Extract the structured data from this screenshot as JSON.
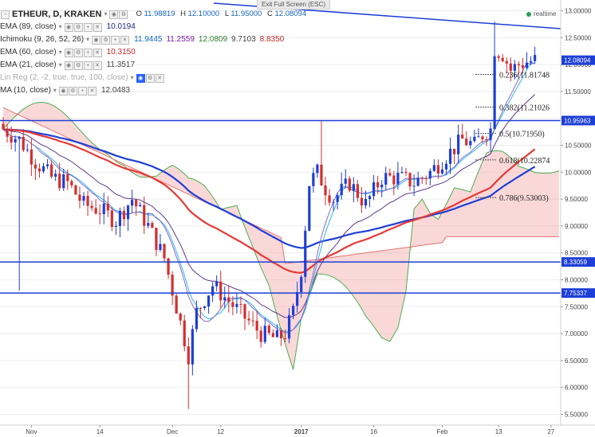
{
  "ui": {
    "exit_fullscreen": "Exit Full Screen (ESC)",
    "realtime": "realtime"
  },
  "header": {
    "symbol": "ETHEUR, D, KRAKEN",
    "o_key": "O",
    "o_val": "11.98819",
    "h_key": "H",
    "h_val": "12.10000",
    "l_key": "L",
    "l_val": "11.95000",
    "c_key": "C",
    "c_val": "12.08094"
  },
  "indicators": [
    {
      "name": "EMA (89, close)",
      "values": [
        "10.0194"
      ],
      "value_colors": [
        "#1a237e"
      ]
    },
    {
      "name": "Ichimoku (9, 26, 52, 26)",
      "values": [
        "11.9445",
        "11.2559",
        "12.0809",
        "9.7103",
        "8.8350"
      ],
      "value_colors": [
        "#1565c0",
        "#7b1fa2",
        "#2e7d32",
        "#444444",
        "#c62828"
      ]
    },
    {
      "name": "EMA (60, close)",
      "values": [
        "10.3150"
      ],
      "value_colors": [
        "#c62828"
      ]
    },
    {
      "name": "EMA (21, close)",
      "values": [
        "11.3517"
      ],
      "value_colors": [
        "#444444"
      ]
    },
    {
      "name": "Lin Reg (2, -2, true, true, 100, close)",
      "values": [],
      "value_colors": []
    },
    {
      "name": "MA (10, close)",
      "values": [
        "12.0483"
      ],
      "value_colors": [
        "#444444"
      ]
    }
  ],
  "chart_data": {
    "type": "candlestick",
    "y_range": [
      5.3,
      13.2
    ],
    "y_ticks": [
      "13.00000",
      "12.50000",
      "12.00000",
      "11.50000",
      "11.00000",
      "10.50000",
      "10.00000",
      "9.50000",
      "9.00000",
      "8.50000",
      "8.00000",
      "7.50000",
      "7.00000",
      "6.50000",
      "6.00000",
      "5.50000"
    ],
    "y_tick_values": [
      13.0,
      12.5,
      12.0,
      11.5,
      11.0,
      10.5,
      10.0,
      9.5,
      9.0,
      8.5,
      8.0,
      7.5,
      7.0,
      6.5,
      6.0,
      5.5
    ],
    "x_labels": [
      "Nov",
      "14",
      "Dec",
      "12",
      "2017",
      "16",
      "Feb",
      "13",
      "27"
    ],
    "x_label_bars": [
      7,
      24,
      42,
      54,
      74,
      92,
      109,
      123,
      136
    ],
    "price_tags": [
      {
        "value": 12.08094,
        "label": "12.08094",
        "color": "#1e3fd6"
      },
      {
        "value": 10.95963,
        "label": "10.95963",
        "color": "#1e3fd6"
      },
      {
        "value": 8.33059,
        "label": "8.33059",
        "color": "#1e3fd6"
      },
      {
        "value": 7.75337,
        "label": "7.75337",
        "color": "#1e3fd6"
      }
    ],
    "fib_levels": [
      {
        "label": "0.236(11.81748",
        "value": 11.81748
      },
      {
        "label": "0.382(11.21026",
        "value": 11.21026
      },
      {
        "label": "0.5(10.71950)",
        "value": 10.7195
      },
      {
        "label": "0.618(10.22874",
        "value": 10.22874
      },
      {
        "label": "0.786(9.53003)",
        "value": 9.53003
      }
    ],
    "colors": {
      "up": "#1e3fd6",
      "down": "#d32f2f",
      "ema89": "#1e3fd6",
      "ema60": "#e53935",
      "hline": "#1e3fd6"
    }
  }
}
